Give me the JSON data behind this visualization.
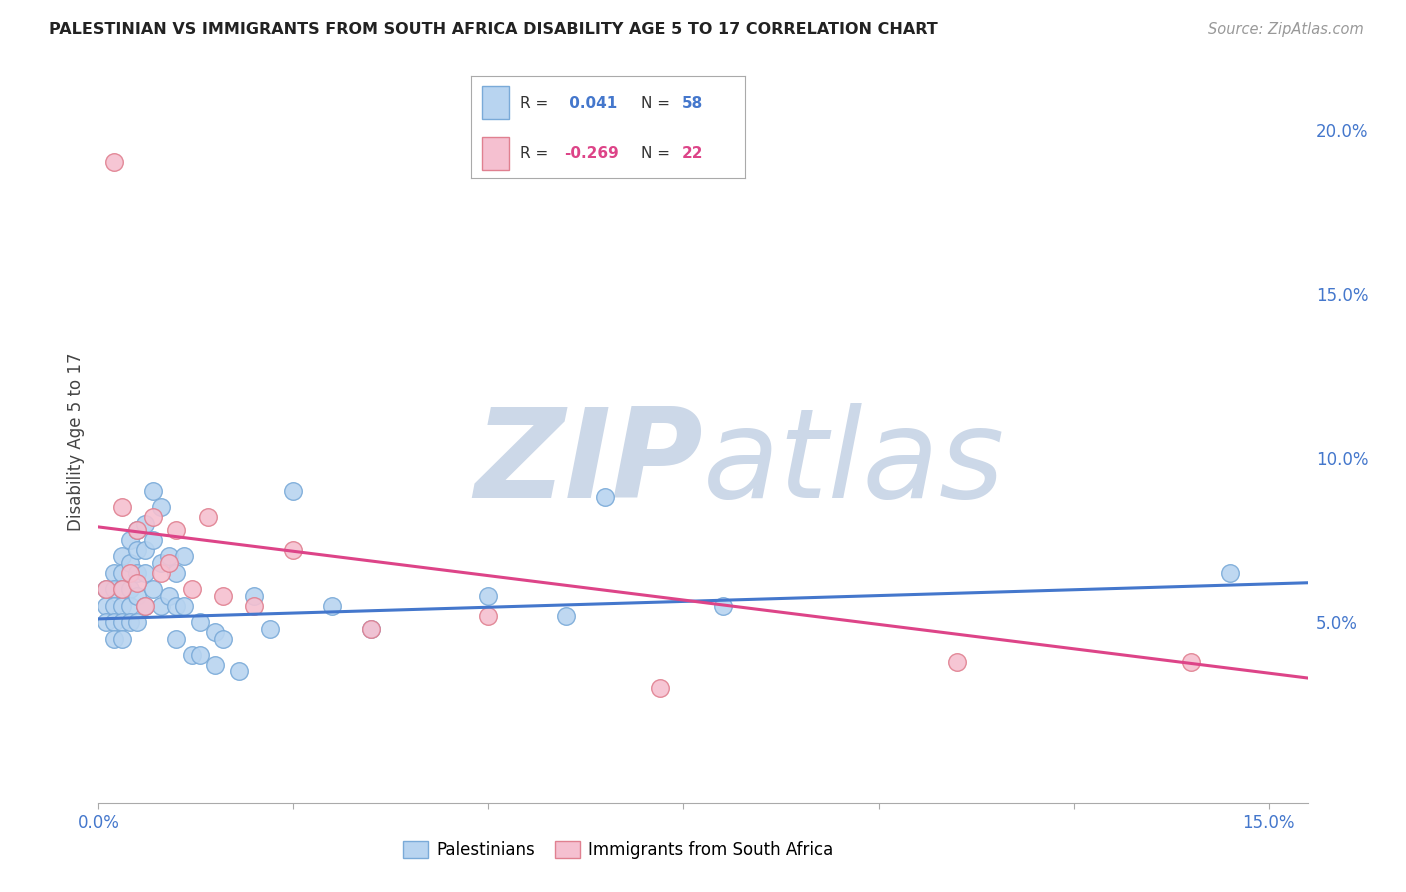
{
  "title": "PALESTINIAN VS IMMIGRANTS FROM SOUTH AFRICA DISABILITY AGE 5 TO 17 CORRELATION CHART",
  "source": "Source: ZipAtlas.com",
  "ylabel": "Disability Age 5 to 17",
  "xlim": [
    0.0,
    0.155
  ],
  "ylim": [
    -0.005,
    0.215
  ],
  "xtick_positions": [
    0.0,
    0.025,
    0.05,
    0.075,
    0.1,
    0.125,
    0.15
  ],
  "xticklabels": [
    "0.0%",
    "",
    "",
    "",
    "",
    "",
    "15.0%"
  ],
  "yticks_right": [
    0.05,
    0.1,
    0.15,
    0.2
  ],
  "ytick_labels_right": [
    "5.0%",
    "10.0%",
    "15.0%",
    "20.0%"
  ],
  "blue_R": "0.041",
  "blue_N": "58",
  "pink_R": "-0.269",
  "pink_N": "22",
  "blue_scatter_x": [
    0.001,
    0.001,
    0.001,
    0.002,
    0.002,
    0.002,
    0.002,
    0.002,
    0.003,
    0.003,
    0.003,
    0.003,
    0.003,
    0.003,
    0.004,
    0.004,
    0.004,
    0.004,
    0.004,
    0.005,
    0.005,
    0.005,
    0.005,
    0.005,
    0.006,
    0.006,
    0.006,
    0.006,
    0.007,
    0.007,
    0.007,
    0.008,
    0.008,
    0.008,
    0.009,
    0.009,
    0.01,
    0.01,
    0.01,
    0.011,
    0.011,
    0.012,
    0.013,
    0.013,
    0.015,
    0.015,
    0.016,
    0.018,
    0.02,
    0.022,
    0.025,
    0.03,
    0.035,
    0.05,
    0.06,
    0.065,
    0.08,
    0.145
  ],
  "blue_scatter_y": [
    0.06,
    0.055,
    0.05,
    0.065,
    0.06,
    0.055,
    0.05,
    0.045,
    0.07,
    0.065,
    0.06,
    0.055,
    0.05,
    0.045,
    0.075,
    0.068,
    0.06,
    0.055,
    0.05,
    0.078,
    0.072,
    0.065,
    0.058,
    0.05,
    0.08,
    0.072,
    0.065,
    0.055,
    0.09,
    0.075,
    0.06,
    0.085,
    0.068,
    0.055,
    0.07,
    0.058,
    0.065,
    0.055,
    0.045,
    0.07,
    0.055,
    0.04,
    0.05,
    0.04,
    0.047,
    0.037,
    0.045,
    0.035,
    0.058,
    0.048,
    0.09,
    0.055,
    0.048,
    0.058,
    0.052,
    0.088,
    0.055,
    0.065
  ],
  "pink_scatter_x": [
    0.001,
    0.002,
    0.003,
    0.003,
    0.004,
    0.005,
    0.005,
    0.006,
    0.007,
    0.008,
    0.009,
    0.01,
    0.012,
    0.014,
    0.016,
    0.02,
    0.025,
    0.035,
    0.05,
    0.072,
    0.11,
    0.14
  ],
  "pink_scatter_y": [
    0.06,
    0.19,
    0.06,
    0.085,
    0.065,
    0.062,
    0.078,
    0.055,
    0.082,
    0.065,
    0.068,
    0.078,
    0.06,
    0.082,
    0.058,
    0.055,
    0.072,
    0.048,
    0.052,
    0.03,
    0.038,
    0.038
  ],
  "blue_line_x": [
    0.0,
    0.155
  ],
  "blue_line_y": [
    0.051,
    0.062
  ],
  "pink_line_x": [
    0.0,
    0.155
  ],
  "pink_line_y": [
    0.079,
    0.033
  ],
  "blue_color": "#b8d4f0",
  "blue_edge_color": "#7aaad8",
  "pink_color": "#f5c0d0",
  "pink_edge_color": "#e08090",
  "blue_line_color": "#4477cc",
  "pink_line_color": "#dd4488",
  "watermark_zip": "ZIP",
  "watermark_atlas": "atlas",
  "watermark_color": "#ccd8e8",
  "legend_label_blue": "Palestinians",
  "legend_label_pink": "Immigrants from South Africa",
  "background_color": "#ffffff",
  "grid_color": "#cccccc",
  "title_color": "#222222",
  "axis_label_color": "#4477cc"
}
